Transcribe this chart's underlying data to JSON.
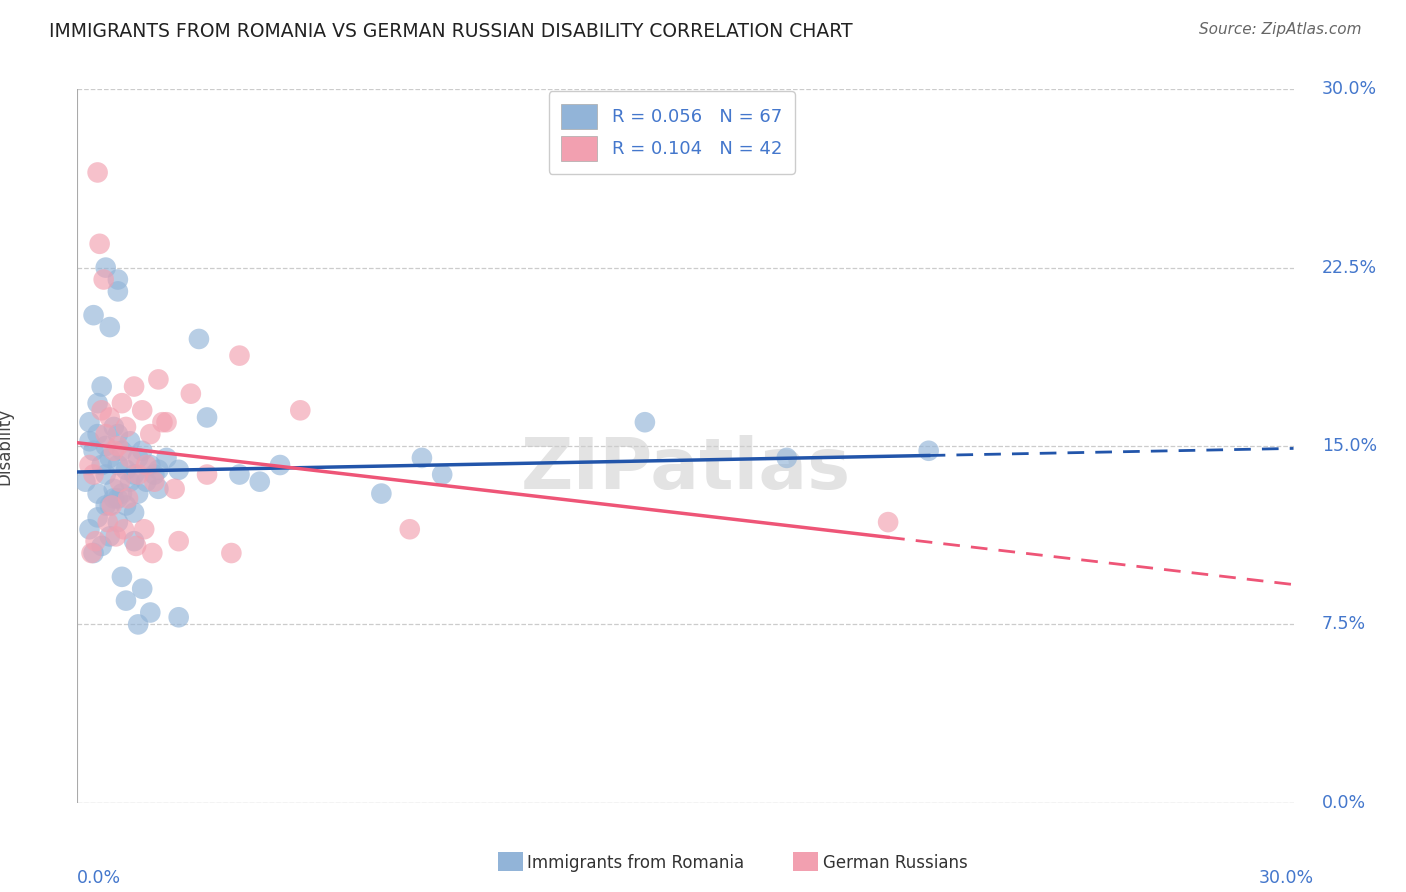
{
  "title": "IMMIGRANTS FROM ROMANIA VS GERMAN RUSSIAN DISABILITY CORRELATION CHART",
  "source": "Source: ZipAtlas.com",
  "ylabel": "Disability",
  "ytick_labels": [
    "0.0%",
    "7.5%",
    "15.0%",
    "22.5%",
    "30.0%"
  ],
  "ytick_values": [
    0.0,
    7.5,
    15.0,
    22.5,
    30.0
  ],
  "xlim": [
    0.0,
    30.0
  ],
  "ylim": [
    0.0,
    30.0
  ],
  "legend_r1": "R = 0.056",
  "legend_n1": "N = 67",
  "legend_r2": "R = 0.104",
  "legend_n2": "N = 42",
  "color_blue": "#92B4D8",
  "color_pink": "#F2A0B0",
  "color_blue_line": "#2255AA",
  "color_pink_line": "#EE5577",
  "color_text_blue": "#4477CC",
  "watermark": "ZIPatlas",
  "romania_x": [
    0.2,
    0.3,
    0.3,
    0.4,
    0.4,
    0.5,
    0.5,
    0.5,
    0.6,
    0.6,
    0.7,
    0.7,
    0.7,
    0.8,
    0.8,
    0.8,
    0.9,
    0.9,
    1.0,
    1.0,
    1.0,
    1.0,
    1.0,
    1.1,
    1.1,
    1.2,
    1.2,
    1.3,
    1.3,
    1.4,
    1.4,
    1.5,
    1.5,
    1.6,
    1.7,
    1.8,
    1.9,
    2.0,
    2.2,
    2.5,
    3.0,
    3.2,
    4.0,
    4.5,
    5.0,
    7.5,
    8.5,
    9.0,
    14.0,
    17.5,
    21.0,
    0.3,
    0.4,
    0.5,
    0.6,
    0.7,
    0.8,
    0.9,
    1.0,
    1.1,
    1.2,
    1.4,
    1.5,
    1.6,
    1.8,
    2.0,
    2.5
  ],
  "romania_y": [
    13.5,
    15.2,
    16.0,
    14.8,
    20.5,
    13.0,
    15.5,
    16.8,
    14.2,
    17.5,
    13.8,
    15.0,
    22.5,
    12.5,
    14.5,
    20.0,
    13.2,
    15.8,
    12.8,
    14.2,
    15.5,
    21.5,
    22.0,
    13.0,
    14.8,
    12.5,
    14.0,
    13.5,
    15.2,
    12.2,
    13.8,
    13.0,
    14.5,
    14.8,
    13.5,
    14.2,
    13.8,
    14.0,
    14.5,
    14.0,
    19.5,
    16.2,
    13.8,
    13.5,
    14.2,
    13.0,
    14.5,
    13.8,
    16.0,
    14.5,
    14.8,
    11.5,
    10.5,
    12.0,
    10.8,
    12.5,
    11.2,
    12.8,
    11.8,
    9.5,
    8.5,
    11.0,
    7.5,
    9.0,
    8.0,
    13.2,
    7.8
  ],
  "german_x": [
    0.3,
    0.4,
    0.5,
    0.6,
    0.7,
    0.8,
    0.9,
    1.0,
    1.1,
    1.2,
    1.3,
    1.4,
    1.5,
    1.6,
    1.7,
    1.8,
    1.9,
    2.0,
    2.2,
    2.4,
    2.8,
    3.2,
    3.8,
    4.0,
    5.5,
    0.35,
    0.45,
    0.55,
    0.65,
    0.75,
    0.85,
    0.95,
    1.05,
    1.15,
    1.25,
    1.45,
    1.65,
    1.85,
    2.1,
    2.5,
    8.2,
    20.0
  ],
  "german_y": [
    14.2,
    13.8,
    26.5,
    16.5,
    15.5,
    16.2,
    14.8,
    15.0,
    16.8,
    15.8,
    14.5,
    17.5,
    13.8,
    16.5,
    14.2,
    15.5,
    13.5,
    17.8,
    16.0,
    13.2,
    17.2,
    13.8,
    10.5,
    18.8,
    16.5,
    10.5,
    11.0,
    23.5,
    22.0,
    11.8,
    12.5,
    11.2,
    13.5,
    11.5,
    12.8,
    10.8,
    11.5,
    10.5,
    16.0,
    11.0,
    11.5,
    11.8
  ]
}
